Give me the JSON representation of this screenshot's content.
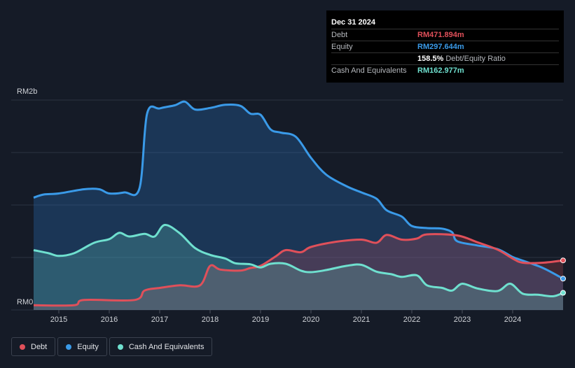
{
  "tooltip": {
    "date": "Dec 31 2024",
    "rows": [
      {
        "label": "Debt",
        "value": "RM471.894m",
        "color": "#e0505a"
      },
      {
        "label": "Equity",
        "value": "RM297.644m",
        "color": "#3a9ae8"
      },
      {
        "label": "",
        "value": "158.5%",
        "sub": "Debt/Equity Ratio",
        "color": "#ffffff"
      },
      {
        "label": "Cash And Equivalents",
        "value": "RM162.977m",
        "color": "#6fe0cf"
      }
    ]
  },
  "legend": [
    {
      "label": "Debt",
      "color": "#e0505a"
    },
    {
      "label": "Equity",
      "color": "#3a9ae8"
    },
    {
      "label": "Cash And Equivalents",
      "color": "#6fe0cf"
    }
  ],
  "chart_data": {
    "type": "area",
    "title": "",
    "xlabel": "",
    "ylabel": "",
    "y_unit": "RM (millions)",
    "ylim": [
      0,
      2000
    ],
    "y_ticks": [
      "RM0",
      "RM2b"
    ],
    "x_ticks": [
      "2015",
      "2016",
      "2017",
      "2018",
      "2019",
      "2020",
      "2021",
      "2022",
      "2023",
      "2024"
    ],
    "xlim": [
      2014.5,
      2025.0
    ],
    "grid": true,
    "legend_position": "bottom-left",
    "series": [
      {
        "name": "Debt",
        "color": "#e0505a",
        "points": [
          [
            2014.5,
            45
          ],
          [
            2015.3,
            45
          ],
          [
            2015.5,
            95
          ],
          [
            2016.5,
            95
          ],
          [
            2016.7,
            185
          ],
          [
            2017.0,
            210
          ],
          [
            2017.4,
            235
          ],
          [
            2017.8,
            235
          ],
          [
            2018.0,
            420
          ],
          [
            2018.2,
            385
          ],
          [
            2018.6,
            375
          ],
          [
            2018.8,
            400
          ],
          [
            2019.0,
            420
          ],
          [
            2019.3,
            510
          ],
          [
            2019.5,
            570
          ],
          [
            2019.8,
            550
          ],
          [
            2020.0,
            600
          ],
          [
            2020.5,
            650
          ],
          [
            2021.0,
            670
          ],
          [
            2021.3,
            640
          ],
          [
            2021.5,
            715
          ],
          [
            2021.8,
            670
          ],
          [
            2022.1,
            680
          ],
          [
            2022.3,
            720
          ],
          [
            2022.9,
            710
          ],
          [
            2023.3,
            645
          ],
          [
            2023.7,
            575
          ],
          [
            2024.0,
            490
          ],
          [
            2024.2,
            450
          ],
          [
            2024.6,
            450
          ],
          [
            2025.0,
            472
          ]
        ]
      },
      {
        "name": "Equity",
        "color": "#3a9ae8",
        "points": [
          [
            2014.5,
            1070
          ],
          [
            2014.7,
            1100
          ],
          [
            2015.0,
            1110
          ],
          [
            2015.5,
            1150
          ],
          [
            2015.8,
            1150
          ],
          [
            2016.0,
            1110
          ],
          [
            2016.3,
            1120
          ],
          [
            2016.6,
            1160
          ],
          [
            2016.75,
            1870
          ],
          [
            2017.0,
            1920
          ],
          [
            2017.3,
            1950
          ],
          [
            2017.5,
            1985
          ],
          [
            2017.7,
            1910
          ],
          [
            2018.0,
            1925
          ],
          [
            2018.3,
            1955
          ],
          [
            2018.6,
            1945
          ],
          [
            2018.8,
            1870
          ],
          [
            2019.0,
            1860
          ],
          [
            2019.2,
            1720
          ],
          [
            2019.4,
            1690
          ],
          [
            2019.7,
            1650
          ],
          [
            2020.0,
            1450
          ],
          [
            2020.3,
            1290
          ],
          [
            2020.7,
            1180
          ],
          [
            2021.0,
            1120
          ],
          [
            2021.3,
            1060
          ],
          [
            2021.5,
            950
          ],
          [
            2021.8,
            890
          ],
          [
            2022.0,
            800
          ],
          [
            2022.3,
            780
          ],
          [
            2022.6,
            775
          ],
          [
            2022.8,
            740
          ],
          [
            2022.9,
            655
          ],
          [
            2023.3,
            615
          ],
          [
            2023.7,
            580
          ],
          [
            2024.0,
            505
          ],
          [
            2024.2,
            470
          ],
          [
            2024.6,
            400
          ],
          [
            2025.0,
            298
          ]
        ]
      },
      {
        "name": "Cash And Equivalents",
        "color": "#6fe0cf",
        "points": [
          [
            2014.5,
            570
          ],
          [
            2014.8,
            540
          ],
          [
            2015.0,
            515
          ],
          [
            2015.3,
            540
          ],
          [
            2015.7,
            640
          ],
          [
            2016.0,
            675
          ],
          [
            2016.2,
            735
          ],
          [
            2016.4,
            700
          ],
          [
            2016.7,
            725
          ],
          [
            2016.9,
            700
          ],
          [
            2017.1,
            810
          ],
          [
            2017.4,
            730
          ],
          [
            2017.7,
            590
          ],
          [
            2018.0,
            525
          ],
          [
            2018.3,
            490
          ],
          [
            2018.5,
            445
          ],
          [
            2018.8,
            435
          ],
          [
            2019.0,
            405
          ],
          [
            2019.2,
            440
          ],
          [
            2019.5,
            440
          ],
          [
            2019.8,
            375
          ],
          [
            2020.0,
            360
          ],
          [
            2020.3,
            380
          ],
          [
            2020.7,
            420
          ],
          [
            2021.0,
            430
          ],
          [
            2021.3,
            365
          ],
          [
            2021.6,
            340
          ],
          [
            2021.8,
            315
          ],
          [
            2022.1,
            330
          ],
          [
            2022.3,
            235
          ],
          [
            2022.6,
            210
          ],
          [
            2022.8,
            185
          ],
          [
            2023.0,
            250
          ],
          [
            2023.3,
            205
          ],
          [
            2023.7,
            180
          ],
          [
            2023.95,
            250
          ],
          [
            2024.2,
            155
          ],
          [
            2024.5,
            145
          ],
          [
            2024.8,
            130
          ],
          [
            2025.0,
            163
          ]
        ]
      }
    ]
  }
}
